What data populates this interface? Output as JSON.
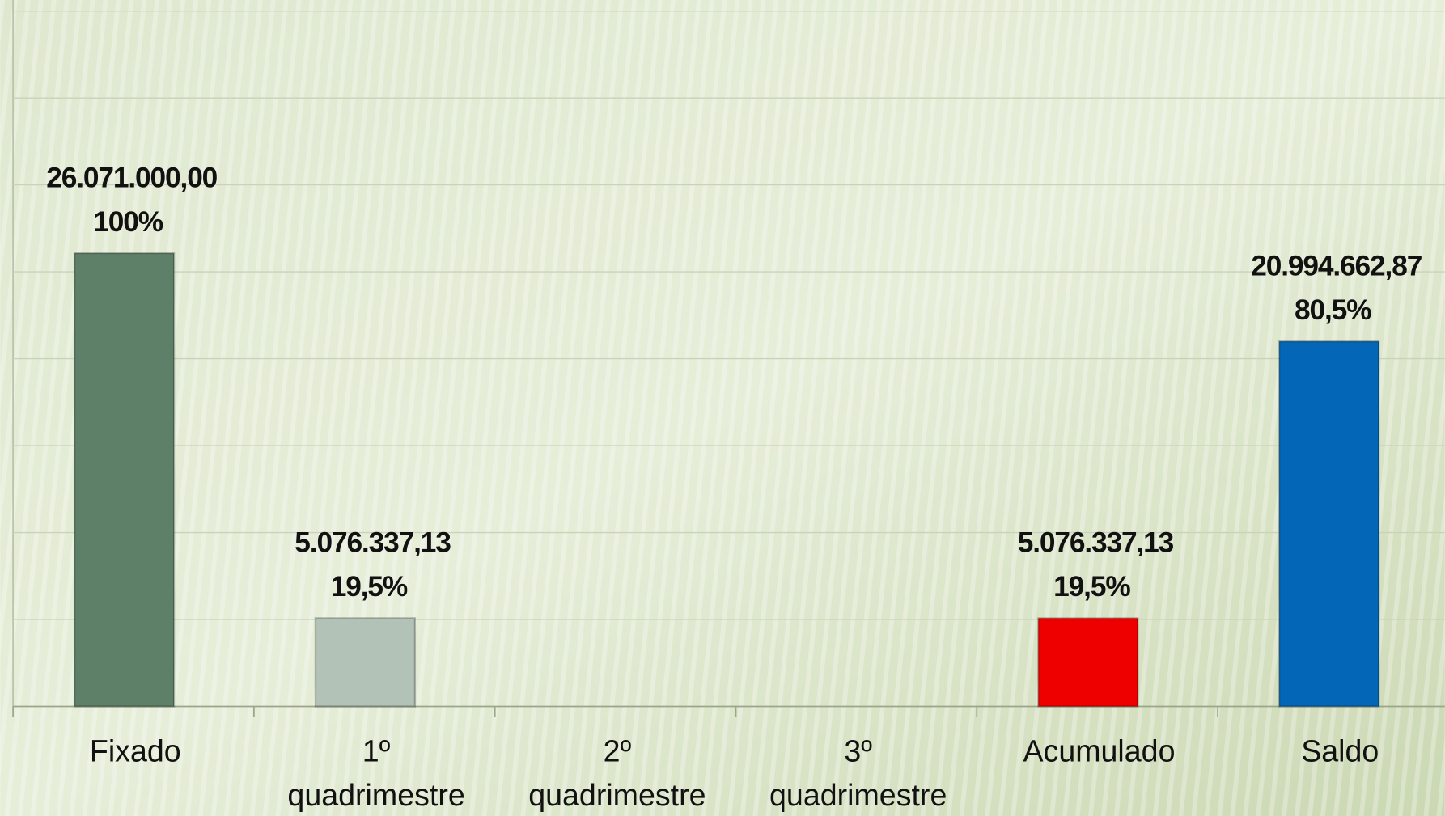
{
  "chart_data": {
    "type": "bar",
    "categories": [
      "Fixado",
      "1º quadrimestre",
      "2º quadrimestre",
      "3º quadrimestre",
      "Acumulado",
      "Saldo"
    ],
    "values": [
      26071000,
      5076337.13,
      null,
      null,
      5076337.13,
      20994662.87
    ],
    "value_labels": [
      "26.071.000,00",
      "5.076.337,13",
      null,
      null,
      "5.076.337,13",
      "20.994.662,87"
    ],
    "percent_labels": [
      "100%",
      "19,5%",
      null,
      null,
      "19,5%",
      "80,5%"
    ],
    "colors": [
      "#5e8068",
      "#b2c2b6",
      null,
      null,
      "#ee0000",
      "#0366b6"
    ],
    "ylim": [
      0,
      40000000
    ],
    "yticks": [
      0,
      5000000,
      10000000,
      15000000,
      20000000,
      25000000,
      30000000,
      35000000,
      40000000
    ],
    "grid": true
  }
}
